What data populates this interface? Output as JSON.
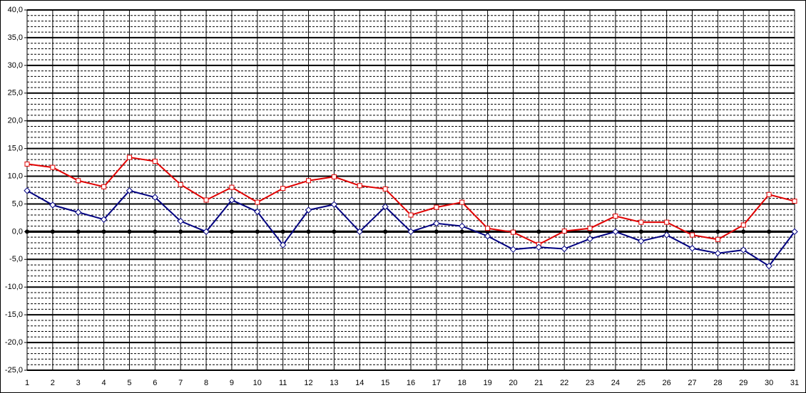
{
  "chart_data": {
    "type": "line",
    "x": [
      1,
      2,
      3,
      4,
      5,
      6,
      7,
      8,
      9,
      10,
      11,
      12,
      13,
      14,
      15,
      16,
      17,
      18,
      19,
      20,
      21,
      22,
      23,
      24,
      25,
      26,
      27,
      28,
      29,
      30,
      31
    ],
    "xlim": [
      1,
      31
    ],
    "xticks": [
      1,
      2,
      3,
      4,
      5,
      6,
      7,
      8,
      9,
      10,
      11,
      12,
      13,
      14,
      15,
      16,
      17,
      18,
      19,
      20,
      21,
      22,
      23,
      24,
      25,
      26,
      27,
      28,
      29,
      30,
      31
    ],
    "ylim": [
      -25,
      40
    ],
    "yticks": [
      {
        "value": -25,
        "label": "-25,0"
      },
      {
        "value": -20,
        "label": "-20,0"
      },
      {
        "value": -15,
        "label": "-15,0"
      },
      {
        "value": -10,
        "label": "-10,0"
      },
      {
        "value": -5,
        "label": "-5,0"
      },
      {
        "value": 0,
        "label": "0,0"
      },
      {
        "value": 5,
        "label": "5,0"
      },
      {
        "value": 10,
        "label": "10,0"
      },
      {
        "value": 15,
        "label": "15,0"
      },
      {
        "value": 20,
        "label": "20,0"
      },
      {
        "value": 25,
        "label": "25,0"
      },
      {
        "value": 30,
        "label": "30,0"
      },
      {
        "value": 35,
        "label": "35,0"
      },
      {
        "value": 40,
        "label": "40,0"
      }
    ],
    "grid": true,
    "series": [
      {
        "color": "#000000",
        "marker": "circle",
        "values": [
          0,
          0,
          0,
          0,
          0,
          0,
          0,
          0,
          0,
          0,
          0,
          0,
          0,
          0,
          0,
          0,
          0,
          0,
          0,
          0,
          0,
          0,
          0,
          0,
          0,
          0,
          0,
          0,
          0,
          0,
          0
        ]
      },
      {
        "color": "#e00000",
        "marker": "square",
        "values": [
          12.2,
          11.6,
          9.2,
          8.1,
          13.4,
          12.7,
          8.5,
          5.7,
          8.0,
          5.3,
          7.8,
          9.2,
          9.9,
          8.3,
          7.7,
          3.0,
          4.4,
          5.3,
          0.6,
          -0.1,
          -2.3,
          0.1,
          0.6,
          2.8,
          1.7,
          1.7,
          -0.6,
          -1.4,
          1.2,
          6.7,
          5.5
        ]
      },
      {
        "color": "#000080",
        "marker": "diamond",
        "values": [
          7.4,
          4.8,
          3.5,
          2.2,
          7.4,
          6.2,
          1.9,
          0.0,
          5.7,
          3.6,
          -2.4,
          3.9,
          4.9,
          0.0,
          4.5,
          0.0,
          1.5,
          1.0,
          -0.8,
          -3.2,
          -2.8,
          -3.1,
          -1.3,
          0.0,
          -1.7,
          -0.6,
          -3.0,
          -3.9,
          -3.3,
          -6.2,
          0.0
        ]
      }
    ]
  }
}
